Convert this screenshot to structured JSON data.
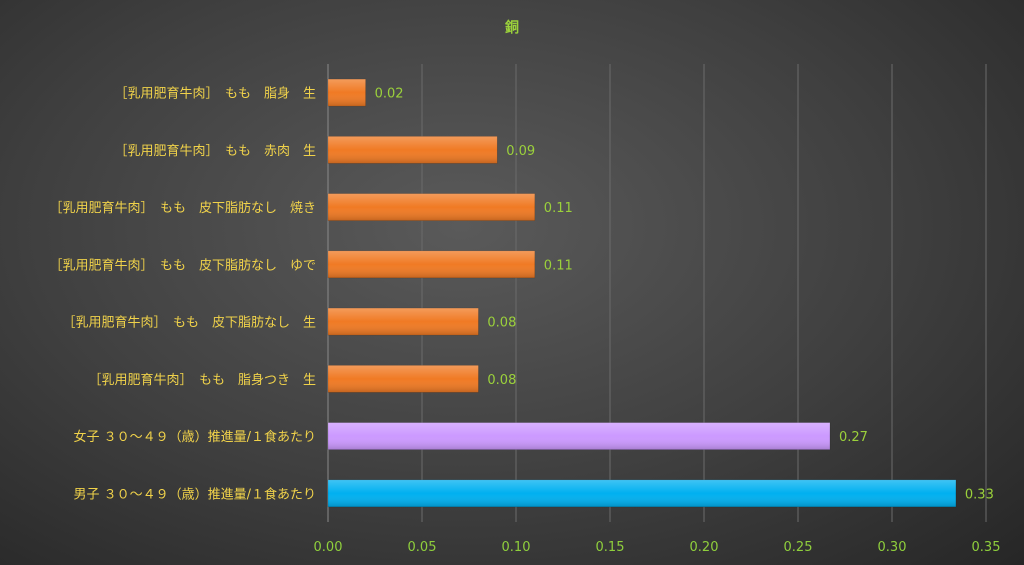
{
  "chart_data": {
    "type": "bar",
    "orientation": "horizontal",
    "title": "銅",
    "xlabel": "",
    "ylabel": "",
    "xlim": [
      0,
      0.35
    ],
    "ticks": [
      "0.00",
      "0.05",
      "0.10",
      "0.15",
      "0.20",
      "0.25",
      "0.30",
      "0.35"
    ],
    "tick_values": [
      0,
      0.05,
      0.1,
      0.15,
      0.2,
      0.25,
      0.3,
      0.35
    ],
    "grid": true,
    "legend": "none",
    "categories": [
      "［乳用肥育牛肉］　もも　脂身　生",
      "［乳用肥育牛肉］　もも　赤肉　生",
      "［乳用肥育牛肉］　もも　皮下脂肪なし　焼き",
      "［乳用肥育牛肉］　もも　皮下脂肪なし　ゆで",
      "［乳用肥育牛肉］　もも　皮下脂肪なし　生",
      "［乳用肥育牛肉］　もも　脂身つき　生",
      "女子 ３０～４９（歳）推進量/１食あたり",
      "男子 ３０～４９（歳）推進量/１食あたり"
    ],
    "values": [
      0.02,
      0.09,
      0.11,
      0.11,
      0.08,
      0.08,
      0.267,
      0.334
    ],
    "data_labels": [
      "0.02",
      "0.09",
      "0.11",
      "0.11",
      "0.08",
      "0.08",
      "0.27",
      "0.33"
    ],
    "colors": [
      "#f07a24",
      "#f07a24",
      "#f07a24",
      "#f07a24",
      "#f07a24",
      "#f07a24",
      "#cc99ff",
      "#00b0f0"
    ]
  }
}
